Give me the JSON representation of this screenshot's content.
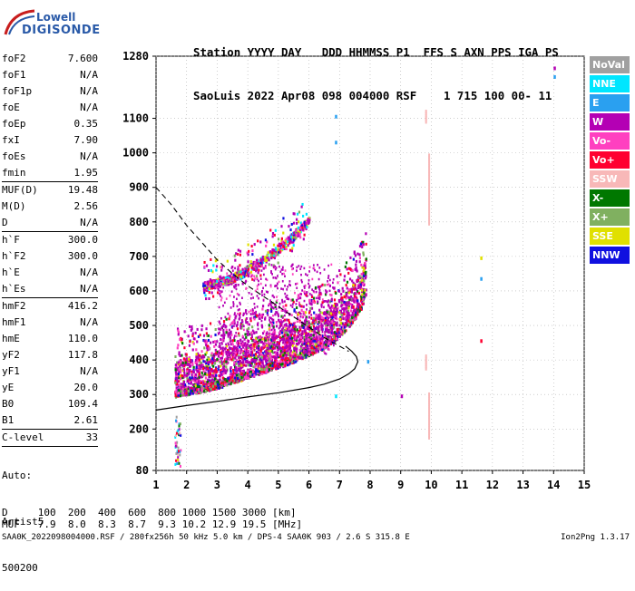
{
  "logo": {
    "line1": "Lowell",
    "line2": "DIGISONDE"
  },
  "header": {
    "line1": "Station YYYY DAY   DDD HHMMSS P1  FFS S AXN PPS IGA PS",
    "line2": "SaoLuis 2022 Apr08 098 004000 RSF    1 715 100 00- 11"
  },
  "params": [
    {
      "label": "foF2",
      "value": "7.600"
    },
    {
      "label": "foF1",
      "value": "N/A"
    },
    {
      "label": "foF1p",
      "value": "N/A"
    },
    {
      "label": "foE",
      "value": "N/A"
    },
    {
      "label": "foEp",
      "value": "0.35"
    },
    {
      "label": "fxI",
      "value": "7.90"
    },
    {
      "label": "foEs",
      "value": "N/A"
    },
    {
      "label": "fmin",
      "value": "1.95"
    },
    {
      "sep": true
    },
    {
      "label": "MUF(D)",
      "value": "19.48"
    },
    {
      "label": "M(D)",
      "value": "2.56"
    },
    {
      "label": "D",
      "value": "N/A"
    },
    {
      "sep": true
    },
    {
      "label": "h`F",
      "value": "300.0"
    },
    {
      "label": "h`F2",
      "value": "300.0"
    },
    {
      "label": "h`E",
      "value": "N/A"
    },
    {
      "label": "h`Es",
      "value": "N/A"
    },
    {
      "sep": true
    },
    {
      "label": "hmF2",
      "value": "416.2"
    },
    {
      "label": "hmF1",
      "value": "N/A"
    },
    {
      "label": "hmE",
      "value": "110.0"
    },
    {
      "label": "yF2",
      "value": "117.8"
    },
    {
      "label": "yF1",
      "value": "N/A"
    },
    {
      "label": "yE",
      "value": "20.0"
    },
    {
      "label": "B0",
      "value": "109.4"
    },
    {
      "label": "B1",
      "value": "2.61"
    },
    {
      "sep": true
    },
    {
      "label": "C-level",
      "value": "33"
    },
    {
      "sep": true
    }
  ],
  "auto_lines": [
    "Auto:",
    "Artist5",
    "500200"
  ],
  "legend": [
    {
      "label": "NoVal",
      "color": "#a0a0a0"
    },
    {
      "label": "NNE",
      "color": "#00e6ff"
    },
    {
      "label": "E",
      "color": "#2aa0f0"
    },
    {
      "label": "W",
      "color": "#b400b4"
    },
    {
      "label": "Vo-",
      "color": "#ff40c0"
    },
    {
      "label": "Vo+",
      "color": "#ff0030"
    },
    {
      "label": "SSW",
      "color": "#f8b8b8"
    },
    {
      "label": "X-",
      "color": "#007800"
    },
    {
      "label": "X+",
      "color": "#80b060"
    },
    {
      "label": "SSE",
      "color": "#e0e000"
    },
    {
      "label": "NNW",
      "color": "#1010e0"
    }
  ],
  "dmuf": {
    "d_line": "D     100  200  400  600  800 1000 1500 3000 [km]",
    "muf_line": "MUF   7.9  8.0  8.3  8.7  9.3 10.2 12.9 19.5 [MHz]"
  },
  "footer": "SAA0K_2022098004000.RSF / 280fx256h 50 kHz 5.0 km / DPS-4 SAA0K 903 / 2.6 S 315.8 E",
  "version": "Ion2Png 1.3.17",
  "chart_data": {
    "type": "scatter",
    "x_range": [
      1,
      15
    ],
    "y_range": [
      80,
      1280
    ],
    "x_ticks": [
      1,
      2,
      3,
      4,
      5,
      6,
      7,
      8,
      9,
      10,
      11,
      12,
      13,
      14,
      15
    ],
    "y_ticks": [
      80,
      200,
      300,
      400,
      500,
      600,
      700,
      800,
      900,
      1000,
      1100,
      1280
    ],
    "grid": true,
    "profile_solid": [
      [
        1.0,
        255
      ],
      [
        2.0,
        268
      ],
      [
        3.0,
        280
      ],
      [
        4.0,
        293
      ],
      [
        5.0,
        305
      ],
      [
        6.0,
        320
      ],
      [
        6.5,
        330
      ],
      [
        7.0,
        345
      ],
      [
        7.3,
        360
      ],
      [
        7.5,
        375
      ],
      [
        7.6,
        395
      ],
      [
        7.55,
        410
      ],
      [
        7.4,
        425
      ],
      [
        7.2,
        440
      ]
    ],
    "trace_dashed": [
      [
        1.0,
        900
      ],
      [
        1.5,
        850
      ],
      [
        2.0,
        790
      ],
      [
        2.5,
        740
      ],
      [
        3.0,
        690
      ],
      [
        3.5,
        650
      ],
      [
        4.0,
        615
      ],
      [
        4.5,
        585
      ],
      [
        5.0,
        555
      ],
      [
        5.5,
        525
      ],
      [
        6.0,
        495
      ],
      [
        6.5,
        465
      ],
      [
        7.0,
        440
      ],
      [
        7.3,
        425
      ]
    ],
    "echo_bands": [
      {
        "name": "F-trace",
        "points": [
          [
            1.6,
            305
          ],
          [
            2.0,
            310
          ],
          [
            2.5,
            318
          ],
          [
            3.0,
            330
          ],
          [
            3.5,
            345
          ],
          [
            4.0,
            360
          ],
          [
            4.5,
            375
          ],
          [
            5.0,
            390
          ],
          [
            5.5,
            405
          ],
          [
            6.0,
            425
          ],
          [
            6.5,
            445
          ],
          [
            7.0,
            480
          ],
          [
            7.4,
            520
          ],
          [
            7.7,
            560
          ],
          [
            7.85,
            600
          ]
        ]
      },
      {
        "name": "second-hop",
        "points": [
          [
            2.5,
            610
          ],
          [
            3.0,
            620
          ],
          [
            3.5,
            635
          ],
          [
            4.0,
            660
          ],
          [
            4.5,
            690
          ],
          [
            5.0,
            720
          ],
          [
            5.5,
            760
          ],
          [
            6.0,
            800
          ]
        ]
      }
    ]
  }
}
